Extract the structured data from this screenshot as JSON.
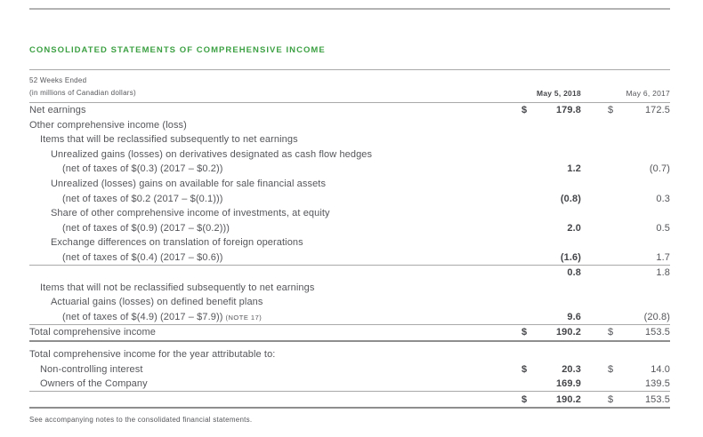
{
  "page": {
    "title": "CONSOLIDATED STATEMENTS OF COMPREHENSIVE INCOME",
    "footnote": "See accompanying notes to the consolidated financial statements."
  },
  "colors": {
    "accent_green": "#3da144",
    "body_text": "#55565a",
    "bold_text": "#45464a",
    "rule_thin": "#a9a9a9",
    "rule_strong": "#8e8e8e"
  },
  "table": {
    "header": {
      "period_label": "52 Weeks Ended",
      "units_label": "(in millions of Canadian dollars)",
      "col_2018": "May 5, 2018",
      "col_2017": "May 6, 2017"
    },
    "rows": [
      {
        "indent": 0,
        "label": "Net earnings",
        "cur18": "$",
        "v18": "179.8",
        "cur17": "$",
        "v17": "172.5"
      },
      {
        "indent": 0,
        "label": "Other comprehensive income (loss)"
      },
      {
        "indent": 1,
        "label": "Items that will be reclassified subsequently to net earnings"
      },
      {
        "indent": 2,
        "label": "Unrealized gains (losses) on derivatives designated as cash flow hedges"
      },
      {
        "indent": 3,
        "label": "(net of taxes of $(0.3) (2017 – $0.2))",
        "v18": "1.2",
        "v17": "(0.7)"
      },
      {
        "indent": 2,
        "label": "Unrealized (losses) gains on available for sale financial assets"
      },
      {
        "indent": 3,
        "label": "(net of taxes of $0.2 (2017 – $(0.1)))",
        "v18": "(0.8)",
        "v17": "0.3"
      },
      {
        "indent": 2,
        "label": "Share of other comprehensive income of investments, at equity"
      },
      {
        "indent": 3,
        "label": "(net of taxes of $(0.9) (2017 – $(0.2)))",
        "v18": "2.0",
        "v17": "0.5"
      },
      {
        "indent": 2,
        "label": "Exchange differences on translation of foreign operations"
      },
      {
        "indent": 3,
        "label": "(net of taxes of $(0.4) (2017 – $0.6))",
        "v18": "(1.6)",
        "v17": "1.7",
        "rule_after": "thin"
      },
      {
        "indent": 0,
        "label": "",
        "v18": "0.8",
        "v17": "1.8"
      },
      {
        "indent": 1,
        "label": "Items that will not be reclassified subsequently to net earnings"
      },
      {
        "indent": 2,
        "label": "Actuarial gains (losses) on defined benefit plans"
      },
      {
        "indent": 3,
        "label": "(net of taxes of $(4.9) (2017 – $7.9))",
        "note": "(NOTE 17)",
        "v18": "9.6",
        "v17": "(20.8)",
        "rule_after": "thin"
      },
      {
        "indent": 0,
        "label": "Total comprehensive income",
        "cur18": "$",
        "v18": "190.2",
        "cur17": "$",
        "v17": "153.5",
        "rule_after": "strong",
        "gap_after": true
      },
      {
        "indent": 0,
        "label": "Total comprehensive income for the year attributable to:"
      },
      {
        "indent": 1,
        "label": "Non-controlling interest",
        "cur18": "$",
        "v18": "20.3",
        "cur17": "$",
        "v17": "14.0"
      },
      {
        "indent": 1,
        "label": "Owners of the Company",
        "v18": "169.9",
        "v17": "139.5",
        "rule_after": "thin"
      },
      {
        "indent": 0,
        "label": "",
        "cur18": "$",
        "v18": "190.2",
        "cur17": "$",
        "v17": "153.5",
        "rule_after": "strong"
      }
    ]
  }
}
